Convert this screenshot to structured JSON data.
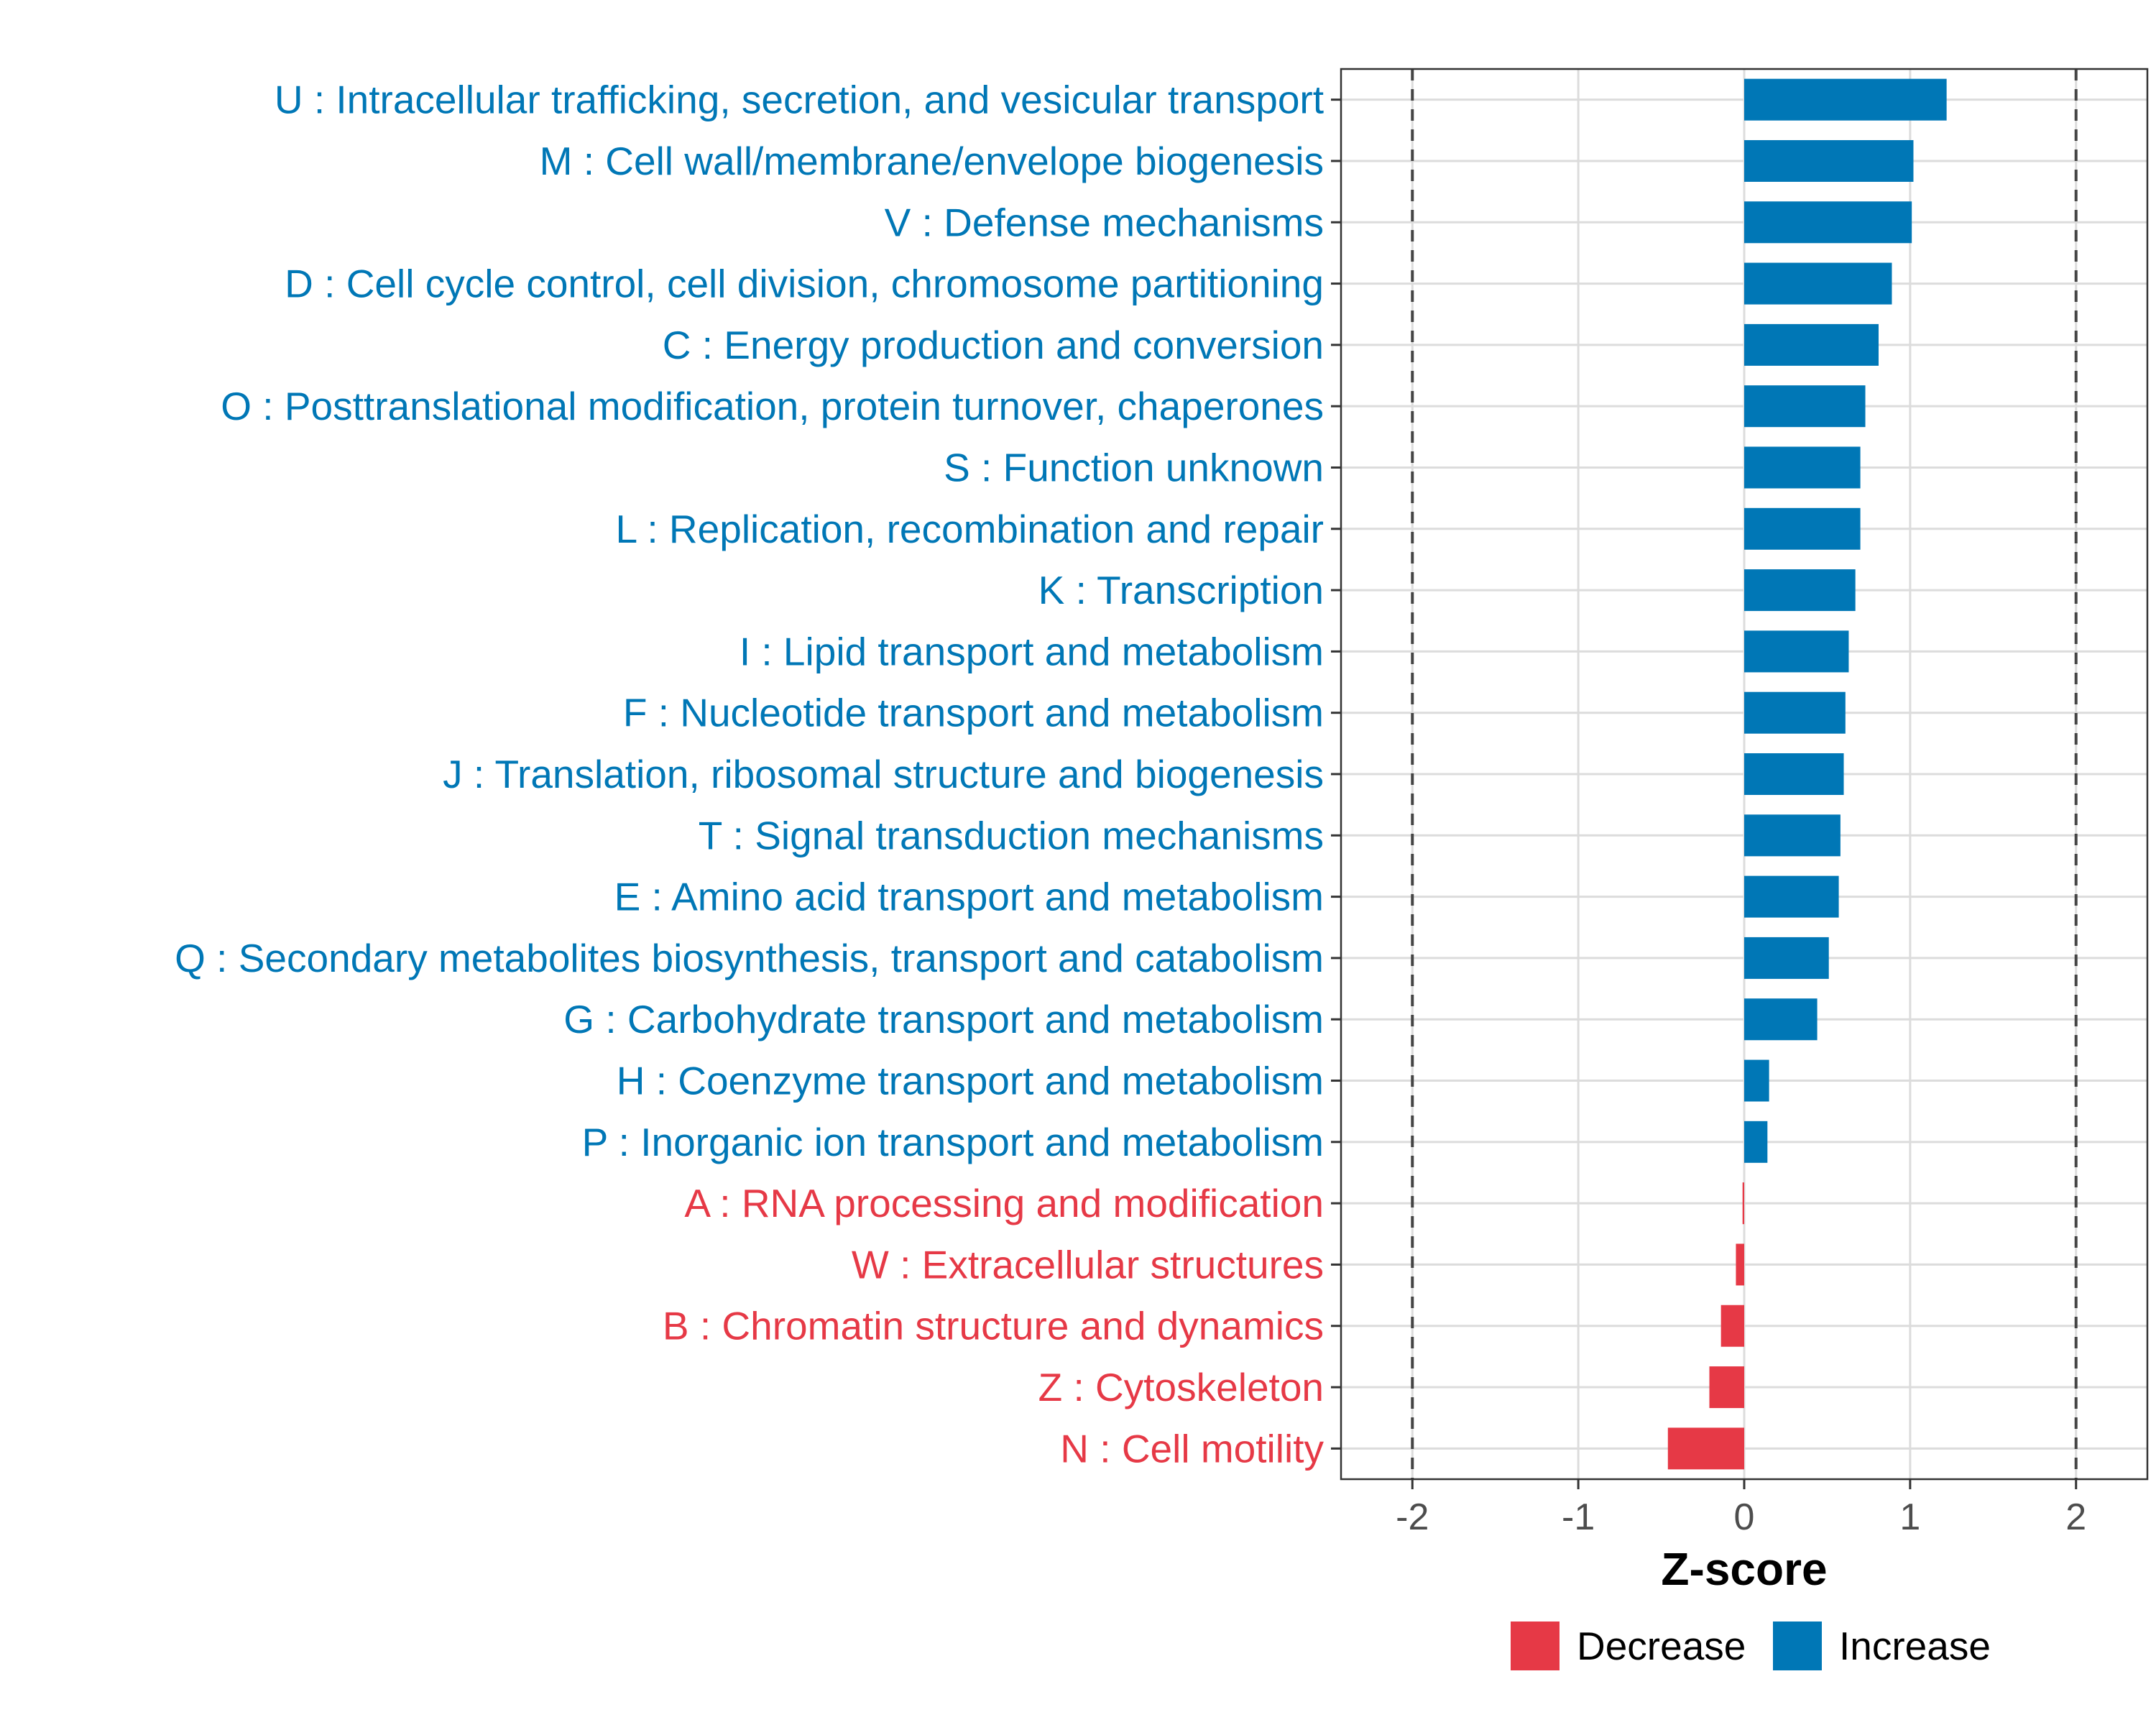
{
  "chart_data": {
    "type": "bar",
    "orientation": "horizontal",
    "xlabel": "Z-score",
    "xlim": [
      -2.43,
      2.43
    ],
    "xticks": [
      -2,
      -1,
      0,
      1,
      2
    ],
    "xtick_labels": [
      "-2",
      "-1",
      "0",
      "1",
      "2"
    ],
    "reference_lines": [
      -2,
      2
    ],
    "grid": true,
    "legend_position": "bottom",
    "legend": [
      {
        "key": "Decrease",
        "label": "Decrease",
        "color": "#E63946"
      },
      {
        "key": "Increase",
        "label": "Increase",
        "color": "#0077B6"
      }
    ],
    "categories": [
      "U : Intracellular trafficking, secretion, and vesicular transport",
      "M : Cell wall/membrane/envelope biogenesis",
      "V : Defense mechanisms",
      "D : Cell cycle control, cell division, chromosome partitioning",
      "C : Energy production and conversion",
      "O : Posttranslational modification, protein turnover, chaperones",
      "S : Function unknown",
      "L : Replication, recombination and repair",
      "K : Transcription",
      "I : Lipid transport and metabolism",
      "F : Nucleotide transport and metabolism",
      "J : Translation, ribosomal structure and biogenesis",
      "T : Signal transduction mechanisms",
      "E : Amino acid transport and metabolism",
      "Q : Secondary metabolites biosynthesis, transport and catabolism",
      "G : Carbohydrate transport and metabolism",
      "H : Coenzyme transport and metabolism",
      "P : Inorganic ion transport and metabolism",
      "A : RNA processing and modification",
      "W : Extracellular structures",
      "B : Chromatin structure and dynamics",
      "Z : Cytoskeleton",
      "N : Cell motility"
    ],
    "values": [
      1.22,
      1.02,
      1.01,
      0.89,
      0.81,
      0.73,
      0.7,
      0.7,
      0.67,
      0.63,
      0.61,
      0.6,
      0.58,
      0.57,
      0.51,
      0.44,
      0.15,
      0.14,
      -0.01,
      -0.05,
      -0.14,
      -0.21,
      -0.46
    ],
    "direction": [
      "Increase",
      "Increase",
      "Increase",
      "Increase",
      "Increase",
      "Increase",
      "Increase",
      "Increase",
      "Increase",
      "Increase",
      "Increase",
      "Increase",
      "Increase",
      "Increase",
      "Increase",
      "Increase",
      "Increase",
      "Increase",
      "Decrease",
      "Decrease",
      "Decrease",
      "Decrease",
      "Decrease"
    ]
  }
}
